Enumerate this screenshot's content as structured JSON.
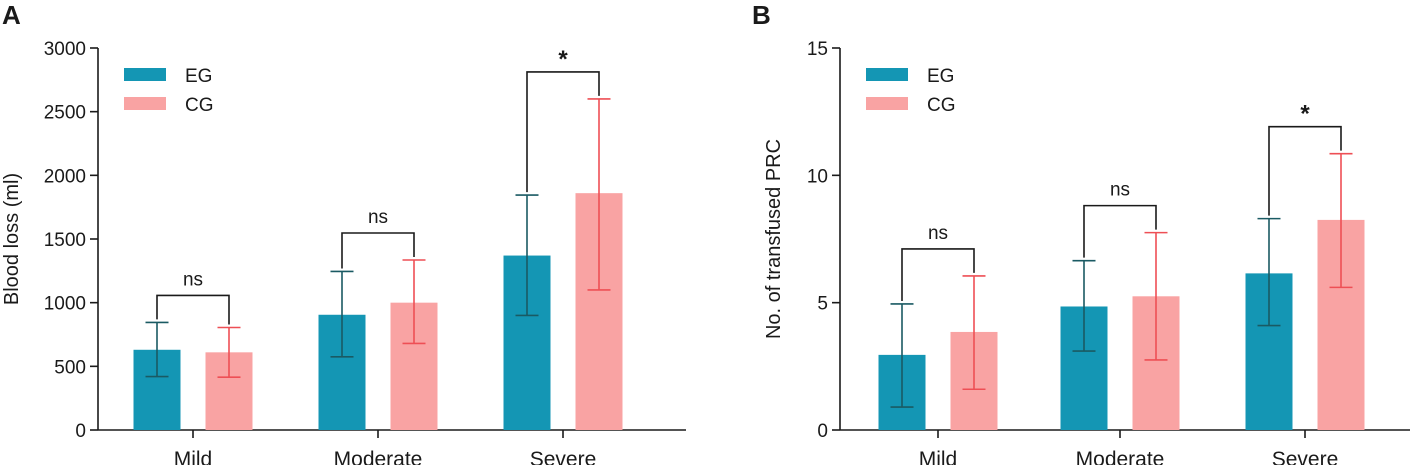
{
  "chart_data": [
    {
      "panel": "A",
      "type": "bar",
      "title": "",
      "xlabel": "",
      "ylabel": "Blood loss (ml)",
      "ylim": [
        0,
        3000
      ],
      "yticks": [
        0,
        500,
        1000,
        1500,
        2000,
        2500,
        3000
      ],
      "categories": [
        "Mild",
        "Moderate",
        "Severe"
      ],
      "legend_position": "top-left",
      "series": [
        {
          "name": "EG",
          "color": "#1496b4",
          "errcolor": "#1a5a63",
          "values": [
            630,
            905,
            1370
          ],
          "err_low": [
            420,
            575,
            900
          ],
          "err_high": [
            845,
            1245,
            1845
          ]
        },
        {
          "name": "CG",
          "color": "#f9a3a3",
          "errcolor": "#ee4f55",
          "values": [
            610,
            1000,
            1860
          ],
          "err_low": [
            415,
            680,
            1100
          ],
          "err_high": [
            805,
            1335,
            2600
          ]
        }
      ],
      "significance": [
        "ns",
        "ns",
        "*"
      ]
    },
    {
      "panel": "B",
      "type": "bar",
      "title": "",
      "xlabel": "",
      "ylabel": "No. of transfused PRC",
      "ylim": [
        0,
        15
      ],
      "yticks": [
        0,
        5,
        10,
        15
      ],
      "categories": [
        "Mild",
        "Moderate",
        "Severe"
      ],
      "legend_position": "top-left",
      "series": [
        {
          "name": "EG",
          "color": "#1496b4",
          "errcolor": "#1a5a63",
          "values": [
            2.95,
            4.85,
            6.15
          ],
          "err_low": [
            0.9,
            3.1,
            4.1
          ],
          "err_high": [
            4.95,
            6.65,
            8.3
          ]
        },
        {
          "name": "CG",
          "color": "#f9a3a3",
          "errcolor": "#ee4f55",
          "values": [
            3.85,
            5.25,
            8.25
          ],
          "err_low": [
            1.6,
            2.75,
            5.6
          ],
          "err_high": [
            6.05,
            7.75,
            10.85
          ]
        }
      ],
      "significance": [
        "ns",
        "ns",
        "*"
      ]
    }
  ]
}
